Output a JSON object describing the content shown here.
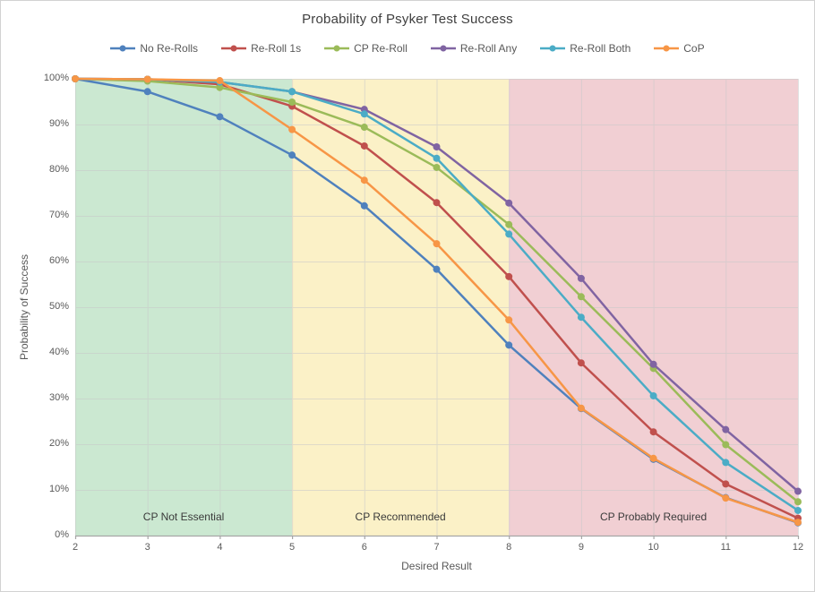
{
  "title": "Probability of Psyker Test Success",
  "axes": {
    "x_label": "Desired Result",
    "y_label": "Probability of Success",
    "x_ticks": [
      "2",
      "3",
      "4",
      "5",
      "6",
      "7",
      "8",
      "9",
      "10",
      "11",
      "12"
    ],
    "y_ticks": [
      "0%",
      "10%",
      "20%",
      "30%",
      "40%",
      "50%",
      "60%",
      "70%",
      "80%",
      "90%",
      "100%"
    ]
  },
  "regions": [
    {
      "label": "CP Not Essential",
      "x_start": 2,
      "x_end": 5,
      "color": "#cbe8d1"
    },
    {
      "label": "CP Recommended",
      "x_start": 5,
      "x_end": 8,
      "color": "#fbf1c7"
    },
    {
      "label": "CP Probably Required",
      "x_start": 8,
      "x_end": 12,
      "color": "#f1cfd3"
    }
  ],
  "chart_data": {
    "type": "line",
    "x": [
      2,
      3,
      4,
      5,
      6,
      7,
      8,
      9,
      10,
      11,
      12
    ],
    "series": [
      {
        "name": "No Re-Rolls",
        "color": "#4f81bd",
        "values": [
          100,
          97.2,
          91.7,
          83.3,
          72.2,
          58.3,
          41.7,
          27.8,
          16.7,
          8.3,
          2.8
        ]
      },
      {
        "name": "Re-Roll 1s",
        "color": "#c0504d",
        "values": [
          100,
          99.9,
          98.8,
          94.0,
          85.3,
          72.9,
          56.7,
          37.8,
          22.7,
          11.3,
          3.8
        ]
      },
      {
        "name": "CP Re-Roll",
        "color": "#9bbb59",
        "values": [
          100,
          99.5,
          98.1,
          94.9,
          89.4,
          80.6,
          68.1,
          52.3,
          36.6,
          19.9,
          7.4
        ]
      },
      {
        "name": "Re-Roll Any",
        "color": "#8064a2",
        "values": [
          100,
          99.9,
          99.3,
          97.2,
          93.3,
          85.1,
          72.8,
          56.3,
          37.5,
          23.2,
          9.7
        ]
      },
      {
        "name": "Re-Roll Both",
        "color": "#4bacc6",
        "values": [
          100,
          99.9,
          99.3,
          97.2,
          92.3,
          82.6,
          66.0,
          47.8,
          30.6,
          16.0,
          5.5
        ]
      },
      {
        "name": "CoP",
        "color": "#f79646",
        "values": [
          100,
          99.9,
          99.6,
          88.9,
          77.8,
          63.9,
          47.2,
          27.9,
          16.9,
          8.2,
          2.9
        ]
      }
    ],
    "xlim": [
      2,
      12
    ],
    "ylim": [
      0,
      100
    ],
    "grid": true,
    "legend_position": "top",
    "gridline_color": "#c9c9c9",
    "axis_line_color": "#a6a6a6"
  }
}
